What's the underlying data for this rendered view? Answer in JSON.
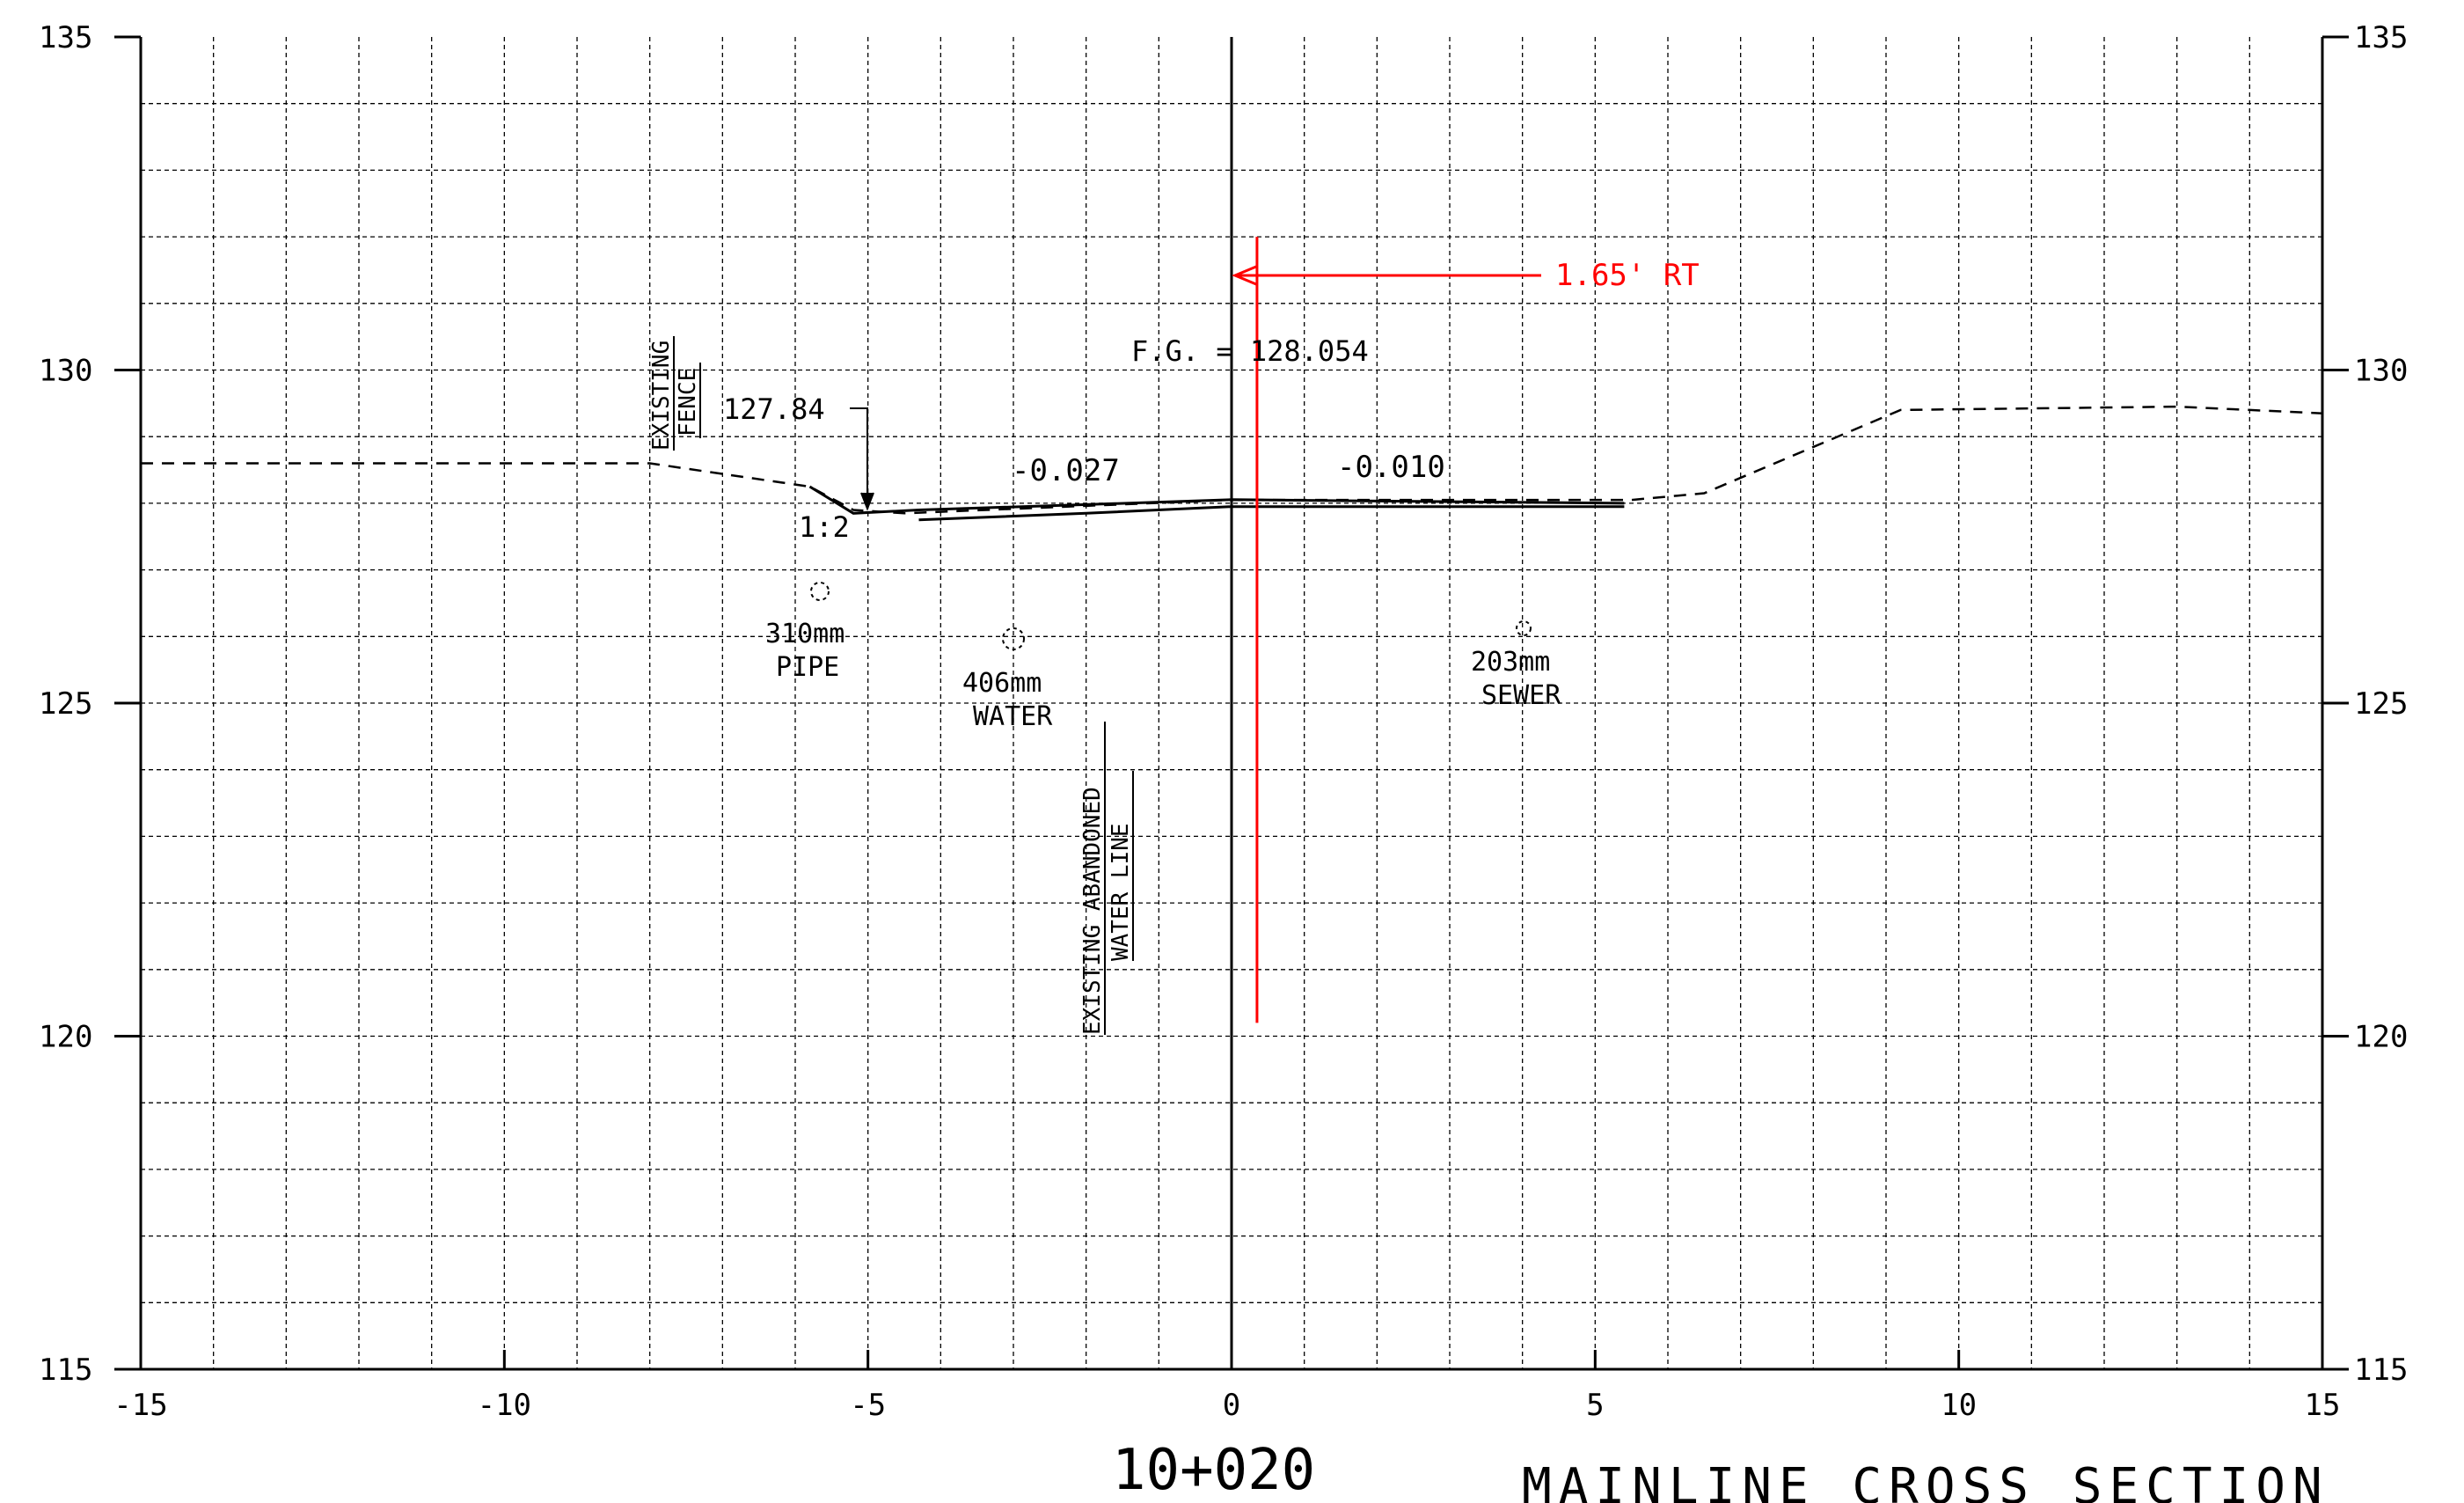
{
  "chart_data": {
    "type": "line",
    "title": "",
    "xlabel": "",
    "ylabel": "",
    "xlim": [
      -15,
      15
    ],
    "ylim": [
      115,
      135
    ],
    "x_ticks": [
      "-15",
      "-10",
      "-5",
      "0",
      "5",
      "10",
      "15"
    ],
    "x_tick_values": [
      -15,
      -10,
      -5,
      0,
      5,
      10,
      15
    ],
    "y_ticks": [
      "115",
      "120",
      "125",
      "130",
      "135"
    ],
    "y_tick_values": [
      115,
      120,
      125,
      130,
      135
    ],
    "grid": true,
    "series": [
      {
        "style": "dashed",
        "x": [
          -15,
          -8,
          -5.8,
          -5.2,
          -4.5,
          0,
          5.5,
          6.5,
          9.2,
          13,
          15
        ],
        "y": [
          128.6,
          128.6,
          128.25,
          127.9,
          127.85,
          128.05,
          128.05,
          128.15,
          129.4,
          129.45,
          129.35
        ]
      },
      {
        "style": "solid",
        "x": [
          -5.8,
          -5.2,
          -4.3,
          -2,
          0,
          5.4
        ],
        "y": [
          128.25,
          127.85,
          127.9,
          127.98,
          128.054,
          128.0
        ]
      },
      {
        "style": "solid",
        "x": [
          -4.3,
          -2,
          0,
          5.4
        ],
        "y": [
          127.75,
          127.85,
          127.95,
          127.95
        ]
      }
    ],
    "centerline_x": 0,
    "offset_line": {
      "x": 0.35,
      "y_from": 120.2,
      "y_to": 132.0,
      "color": "#ff0000"
    },
    "annotations": {
      "existing_fence": [
        "EXISTING",
        "FENCE"
      ],
      "elev_label": "127.84",
      "slope_ratio": "1:2",
      "slope_left": "-0.027",
      "slope_right": "-0.010",
      "fg_label": "F.G.  =  128.054",
      "offset_label": "1.65' RT",
      "pipe": [
        "310mm",
        "PIPE"
      ],
      "water": [
        "406mm",
        "WATER"
      ],
      "sewer": [
        "203mm",
        "SEWER"
      ],
      "abandoned": [
        "EXISTING ABANDONED",
        "WATER LINE"
      ]
    },
    "station": "10+020",
    "section_title": "MAINLINE CROSS SECTION"
  }
}
